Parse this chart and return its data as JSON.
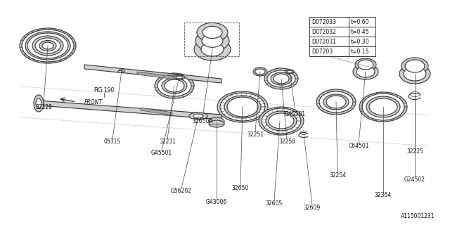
{
  "bg_color": "#ffffff",
  "lc": "#333333",
  "lw": 0.8,
  "diagram_id": "A115001231",
  "table_rows": [
    [
      "D07203",
      "t=0.15"
    ],
    [
      "D072031",
      "t=0.30"
    ],
    [
      "D072032",
      "t=0.45"
    ],
    [
      "D072033",
      "t=0.60"
    ]
  ]
}
